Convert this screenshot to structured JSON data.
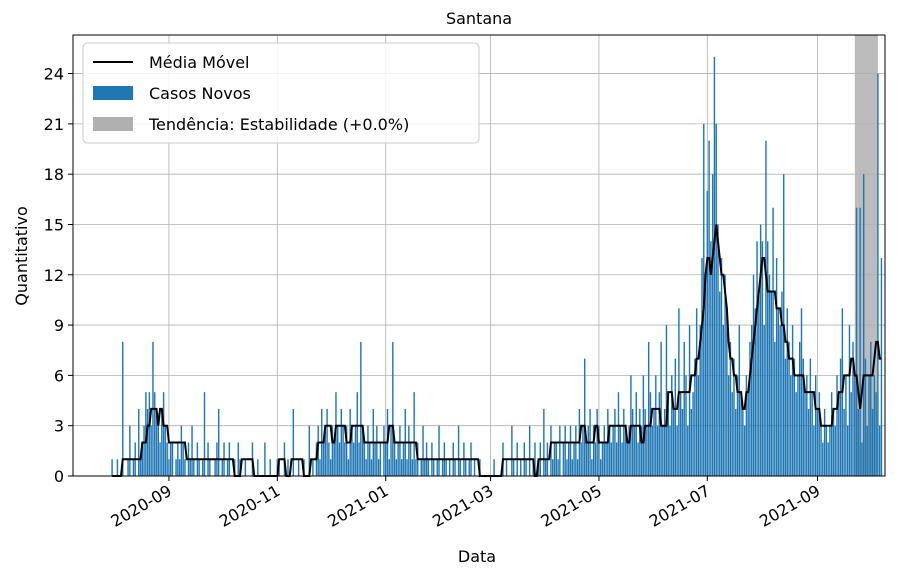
{
  "chart_data": {
    "type": "bar",
    "title": "Santana",
    "x_label": "Data",
    "y_label": "Quantitativo",
    "xlim": [
      -54,
      403
    ],
    "ylim": [
      0,
      26.3
    ],
    "xticks": [
      {
        "value": 0,
        "label": "2020-09"
      },
      {
        "value": 61,
        "label": "2020-11"
      },
      {
        "value": 122,
        "label": "2021-01"
      },
      {
        "value": 181,
        "label": "2021-03"
      },
      {
        "value": 242,
        "label": "2021-05"
      },
      {
        "value": 303,
        "label": "2021-07"
      },
      {
        "value": 365,
        "label": "2021-09"
      }
    ],
    "yticks": [
      0,
      3,
      6,
      9,
      12,
      15,
      18,
      21,
      24
    ],
    "grid": true,
    "legend": "upper left",
    "span": {
      "label": "Tendência: Estabilidade (+0.0%)",
      "start": 386,
      "end": 399,
      "color": "#b0b0b0"
    },
    "x": [
      -32,
      -31,
      -30,
      -29,
      -28,
      -27,
      -26,
      -25,
      -24,
      -23,
      -22,
      -21,
      -20,
      -19,
      -18,
      -17,
      -16,
      -15,
      -14,
      -13,
      -12,
      -11,
      -10,
      -9,
      -8,
      -7,
      -6,
      -5,
      -4,
      -3,
      -2,
      -1,
      0,
      1,
      2,
      3,
      4,
      5,
      6,
      7,
      8,
      9,
      10,
      11,
      12,
      13,
      14,
      15,
      16,
      17,
      18,
      19,
      20,
      21,
      22,
      23,
      24,
      25,
      26,
      27,
      28,
      29,
      30,
      31,
      32,
      33,
      34,
      35,
      36,
      37,
      38,
      39,
      40,
      41,
      42,
      43,
      44,
      45,
      46,
      47,
      48,
      49,
      50,
      51,
      52,
      53,
      54,
      55,
      56,
      57,
      58,
      59,
      60,
      61,
      62,
      63,
      64,
      65,
      66,
      67,
      68,
      69,
      70,
      71,
      72,
      73,
      74,
      75,
      76,
      77,
      78,
      79,
      80,
      81,
      82,
      83,
      84,
      85,
      86,
      87,
      88,
      89,
      90,
      91,
      92,
      93,
      94,
      95,
      96,
      97,
      98,
      99,
      100,
      101,
      102,
      103,
      104,
      105,
      106,
      107,
      108,
      109,
      110,
      111,
      112,
      113,
      114,
      115,
      116,
      117,
      118,
      119,
      120,
      121,
      122,
      123,
      124,
      125,
      126,
      127,
      128,
      129,
      130,
      131,
      132,
      133,
      134,
      135,
      136,
      137,
      138,
      139,
      140,
      141,
      142,
      143,
      144,
      145,
      146,
      147,
      148,
      149,
      150,
      151,
      152,
      153,
      154,
      155,
      156,
      157,
      158,
      159,
      160,
      161,
      162,
      163,
      164,
      165,
      166,
      167,
      168,
      169,
      170,
      171,
      172,
      173,
      174,
      175,
      176,
      177,
      178,
      179,
      180,
      181,
      182,
      183,
      184,
      185,
      186,
      187,
      188,
      189,
      190,
      191,
      192,
      193,
      194,
      195,
      196,
      197,
      198,
      199,
      200,
      201,
      202,
      203,
      204,
      205,
      206,
      207,
      208,
      209,
      210,
      211,
      212,
      213,
      214,
      215,
      216,
      217,
      218,
      219,
      220,
      221,
      222,
      223,
      224,
      225,
      226,
      227,
      228,
      229,
      230,
      231,
      232,
      233,
      234,
      235,
      236,
      237,
      238,
      239,
      240,
      241,
      242,
      243,
      244,
      245,
      246,
      247,
      248,
      249,
      250,
      251,
      252,
      253,
      254,
      255,
      256,
      257,
      258,
      259,
      260,
      261,
      262,
      263,
      264,
      265,
      266,
      267,
      268,
      269,
      270,
      271,
      272,
      273,
      274,
      275,
      276,
      277,
      278,
      279,
      280,
      281,
      282,
      283,
      284,
      285,
      286,
      287,
      288,
      289,
      290,
      291,
      292,
      293,
      294,
      295,
      296,
      297,
      298,
      299,
      300,
      301,
      302,
      303,
      304,
      305,
      306,
      307,
      308,
      309,
      310,
      311,
      312,
      313,
      314,
      315,
      316,
      317,
      318,
      319,
      320,
      321,
      322,
      323,
      324,
      325,
      326,
      327,
      328,
      329,
      330,
      331,
      332,
      333,
      334,
      335,
      336,
      337,
      338,
      339,
      340,
      341,
      342,
      343,
      344,
      345,
      346,
      347,
      348,
      349,
      350,
      351,
      352,
      353,
      354,
      355,
      356,
      357,
      358,
      359,
      360,
      361,
      362,
      363,
      364,
      365,
      366,
      367,
      368,
      369,
      370,
      371,
      372,
      373,
      374,
      375,
      376,
      377,
      378,
      379,
      380,
      381,
      382,
      383,
      384,
      385,
      386,
      387,
      388,
      389,
      390,
      391,
      392,
      393,
      394,
      395,
      396,
      397,
      398,
      399,
      400,
      401
    ],
    "series": [
      {
        "name": "Média Móvel",
        "type": "line",
        "color": "#000000",
        "values": [
          0,
          0,
          0,
          0,
          0,
          0,
          1,
          1,
          1,
          1,
          1,
          1,
          1,
          1,
          1,
          1,
          1,
          2,
          2,
          2,
          3,
          3,
          4,
          4,
          4,
          4,
          3,
          4,
          4,
          3,
          3,
          3,
          2,
          2,
          2,
          2,
          2,
          2,
          2,
          2,
          2,
          2,
          1,
          1,
          1,
          1,
          1,
          1,
          1,
          1,
          1,
          1,
          1,
          1,
          1,
          1,
          1,
          1,
          1,
          1,
          1,
          1,
          1,
          1,
          1,
          1,
          1,
          1,
          1,
          0,
          0,
          0,
          0,
          1,
          1,
          1,
          1,
          1,
          1,
          1,
          0,
          0,
          0,
          0,
          0,
          0,
          0,
          0,
          0,
          0,
          0,
          0,
          0,
          0,
          1,
          1,
          1,
          1,
          0,
          0,
          0,
          1,
          1,
          1,
          1,
          1,
          1,
          1,
          0,
          0,
          0,
          0,
          1,
          1,
          1,
          1,
          2,
          2,
          2,
          2,
          3,
          3,
          3,
          3,
          2,
          2,
          3,
          3,
          3,
          3,
          3,
          3,
          2,
          2,
          2,
          3,
          3,
          3,
          3,
          3,
          3,
          3,
          2,
          2,
          2,
          2,
          2,
          2,
          2,
          2,
          2,
          2,
          2,
          2,
          2,
          2,
          3,
          3,
          3,
          2,
          2,
          2,
          2,
          2,
          2,
          2,
          2,
          2,
          2,
          2,
          2,
          2,
          1,
          1,
          1,
          1,
          1,
          1,
          1,
          1,
          1,
          1,
          1,
          1,
          1,
          1,
          1,
          1,
          1,
          1,
          1,
          1,
          1,
          1,
          1,
          1,
          1,
          1,
          1,
          1,
          1,
          1,
          1,
          1,
          1,
          1,
          1,
          0,
          0,
          0,
          0,
          0,
          0,
          0,
          0,
          0,
          0,
          0,
          0,
          0,
          1,
          1,
          1,
          1,
          1,
          1,
          1,
          1,
          1,
          1,
          1,
          1,
          1,
          1,
          1,
          1,
          1,
          1,
          0,
          0,
          1,
          1,
          1,
          1,
          1,
          1,
          1,
          2,
          2,
          2,
          2,
          2,
          2,
          2,
          2,
          2,
          2,
          2,
          2,
          2,
          2,
          2,
          2,
          2,
          3,
          3,
          3,
          2,
          2,
          2,
          2,
          2,
          3,
          3,
          2,
          2,
          2,
          2,
          2,
          2,
          3,
          3,
          3,
          3,
          3,
          3,
          3,
          3,
          3,
          3,
          2,
          2,
          3,
          3,
          3,
          3,
          3,
          3,
          2,
          2,
          3,
          3,
          3,
          3,
          4,
          4,
          4,
          4,
          4,
          3,
          3,
          3,
          3,
          5,
          5,
          5,
          4,
          4,
          4,
          5,
          5,
          5,
          5,
          5,
          5,
          5,
          6,
          6,
          6,
          7,
          7,
          8,
          9,
          10,
          12,
          13,
          13,
          12,
          13,
          14,
          15,
          14,
          13,
          12,
          12,
          11,
          10,
          8,
          7,
          7,
          6,
          6,
          5,
          5,
          5,
          4,
          4,
          5,
          5,
          6,
          7,
          8,
          9,
          10,
          11,
          12,
          13,
          13,
          12,
          11,
          11,
          11,
          11,
          11,
          10,
          10,
          10,
          9,
          9,
          8,
          8,
          7,
          7,
          7,
          6,
          6,
          6,
          6,
          6,
          6,
          5,
          5,
          5,
          5,
          5,
          5,
          4,
          4,
          4,
          3,
          3,
          3,
          3,
          3,
          3,
          3,
          4,
          4,
          4,
          5,
          5,
          5,
          6,
          6,
          6,
          6,
          7,
          7,
          6,
          6,
          5,
          4,
          5,
          6,
          6,
          6,
          6,
          6,
          6,
          7,
          8,
          8,
          7,
          7
        ]
      },
      {
        "name": "Casos Novos",
        "type": "bar",
        "color": "#1f77b4",
        "values": [
          1,
          0,
          0,
          1,
          0,
          0,
          8,
          0,
          0,
          1,
          3,
          0,
          1,
          2,
          0,
          4,
          1,
          2,
          3,
          5,
          4,
          5,
          3,
          8,
          5,
          4,
          3,
          2,
          4,
          5,
          3,
          2,
          1,
          2,
          2,
          0,
          1,
          2,
          1,
          3,
          2,
          1,
          0,
          2,
          1,
          3,
          1,
          0,
          2,
          1,
          0,
          1,
          5,
          0,
          2,
          1,
          0,
          0,
          1,
          2,
          4,
          0,
          1,
          2,
          0,
          1,
          2,
          0,
          0,
          1,
          0,
          2,
          1,
          0,
          0,
          1,
          0,
          0,
          0,
          2,
          0,
          0,
          1,
          0,
          0,
          0,
          2,
          0,
          0,
          1,
          0,
          0,
          0,
          1,
          1,
          0,
          0,
          2,
          0,
          1,
          0,
          0,
          4,
          0,
          0,
          1,
          0,
          0,
          1,
          0,
          0,
          3,
          0,
          1,
          0,
          2,
          3,
          1,
          4,
          2,
          3,
          4,
          2,
          1,
          3,
          2,
          5,
          3,
          2,
          4,
          3,
          2,
          3,
          1,
          4,
          3,
          2,
          3,
          5,
          2,
          8,
          3,
          2,
          1,
          3,
          2,
          1,
          4,
          2,
          3,
          1,
          2,
          0,
          3,
          2,
          4,
          1,
          3,
          8,
          2,
          1,
          2,
          3,
          1,
          2,
          4,
          1,
          3,
          2,
          1,
          5,
          1,
          2,
          0,
          1,
          3,
          1,
          2,
          1,
          0,
          2,
          1,
          0,
          1,
          3,
          0,
          1,
          2,
          1,
          0,
          1,
          0,
          2,
          1,
          0,
          3,
          1,
          0,
          2,
          1,
          0,
          1,
          2,
          0,
          1,
          0,
          0,
          1,
          0,
          0,
          0,
          0,
          0,
          0,
          0,
          1,
          0,
          0,
          0,
          0,
          2,
          0,
          1,
          0,
          0,
          3,
          1,
          0,
          2,
          0,
          1,
          0,
          2,
          1,
          0,
          3,
          0,
          1,
          2,
          0,
          1,
          2,
          0,
          4,
          1,
          2,
          0,
          3,
          1,
          2,
          2,
          1,
          3,
          0,
          2,
          3,
          1,
          2,
          3,
          1,
          2,
          3,
          1,
          4,
          2,
          3,
          7,
          2,
          3,
          4,
          1,
          3,
          2,
          4,
          3,
          1,
          2,
          3,
          2,
          4,
          3,
          2,
          3,
          4,
          2,
          5,
          3,
          2,
          4,
          3,
          2,
          3,
          6,
          4,
          3,
          5,
          2,
          4,
          3,
          6,
          4,
          3,
          8,
          5,
          3,
          4,
          6,
          3,
          5,
          8,
          3,
          4,
          9,
          5,
          3,
          6,
          4,
          7,
          3,
          10,
          5,
          4,
          8,
          6,
          3,
          9,
          4,
          5,
          7,
          10,
          6,
          9,
          13,
          21,
          12,
          17,
          20,
          14,
          18,
          25,
          21,
          15,
          11,
          13,
          9,
          12,
          10,
          6,
          8,
          5,
          7,
          4,
          6,
          9,
          5,
          4,
          3,
          6,
          5,
          8,
          9,
          12,
          10,
          14,
          11,
          15,
          14,
          9,
          20,
          14,
          12,
          11,
          16,
          8,
          13,
          10,
          9,
          11,
          18,
          7,
          10,
          8,
          6,
          9,
          7,
          5,
          6,
          8,
          10,
          7,
          5,
          6,
          4,
          7,
          5,
          3,
          6,
          4,
          5,
          3,
          2,
          4,
          3,
          2,
          3,
          5,
          4,
          3,
          6,
          5,
          7,
          10,
          4,
          6,
          3,
          9,
          5,
          8,
          6,
          16,
          4,
          16,
          2,
          18,
          7,
          3,
          6,
          8,
          4,
          6,
          5,
          24,
          3,
          13
        ]
      }
    ]
  }
}
